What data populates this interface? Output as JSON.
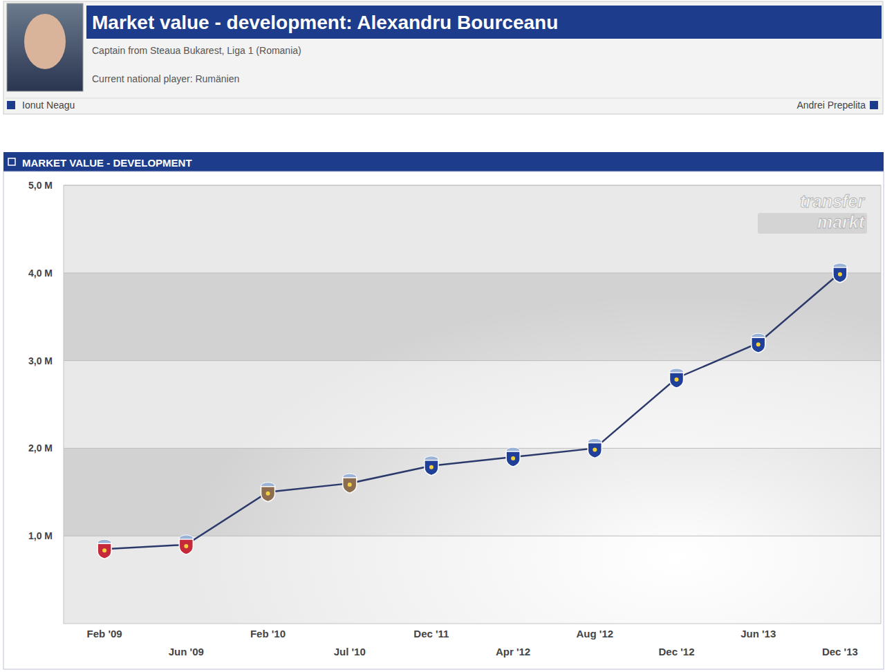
{
  "header": {
    "title": "Market value - development: Alexandru Bourceanu",
    "subtitle": "Captain from Steaua Bukarest, Liga 1 (Romania)",
    "national": "Current national player: Rumänien",
    "prev": "Ionut Neagu",
    "next": "Andrei Prepelita"
  },
  "chart_data": {
    "type": "line",
    "title": "MARKET VALUE - DEVELOPMENT",
    "watermark": [
      "transfer",
      "markt"
    ],
    "categories": [
      "Feb '09",
      "Jun '09",
      "Feb '10",
      "Jul '10",
      "Dec '11",
      "Apr '12",
      "Aug '12",
      "Dec '12",
      "Jun '13",
      "Dec '13"
    ],
    "values": [
      0.85,
      0.9,
      1.5,
      1.6,
      1.8,
      1.9,
      2.0,
      2.8,
      3.2,
      4.0
    ],
    "color": "#2b3a6b",
    "marker": "crest",
    "colors": [
      "#c62a3a",
      "#c62a3a",
      "#8c6d4f",
      "#8c6d4f",
      "#1f3f99",
      "#1f3f99",
      "#1f3f99",
      "#1f3f99",
      "#1f3f99",
      "#1f3f99"
    ],
    "ylim": [
      0,
      5
    ],
    "yticks": [
      {
        "value": 1,
        "label": "1,0 M"
      },
      {
        "value": 2,
        "label": "2,0 M"
      },
      {
        "value": 3,
        "label": "3,0 M"
      },
      {
        "value": 4,
        "label": "4,0 M"
      },
      {
        "value": 5,
        "label": "5,0 M"
      }
    ],
    "grid": true
  }
}
